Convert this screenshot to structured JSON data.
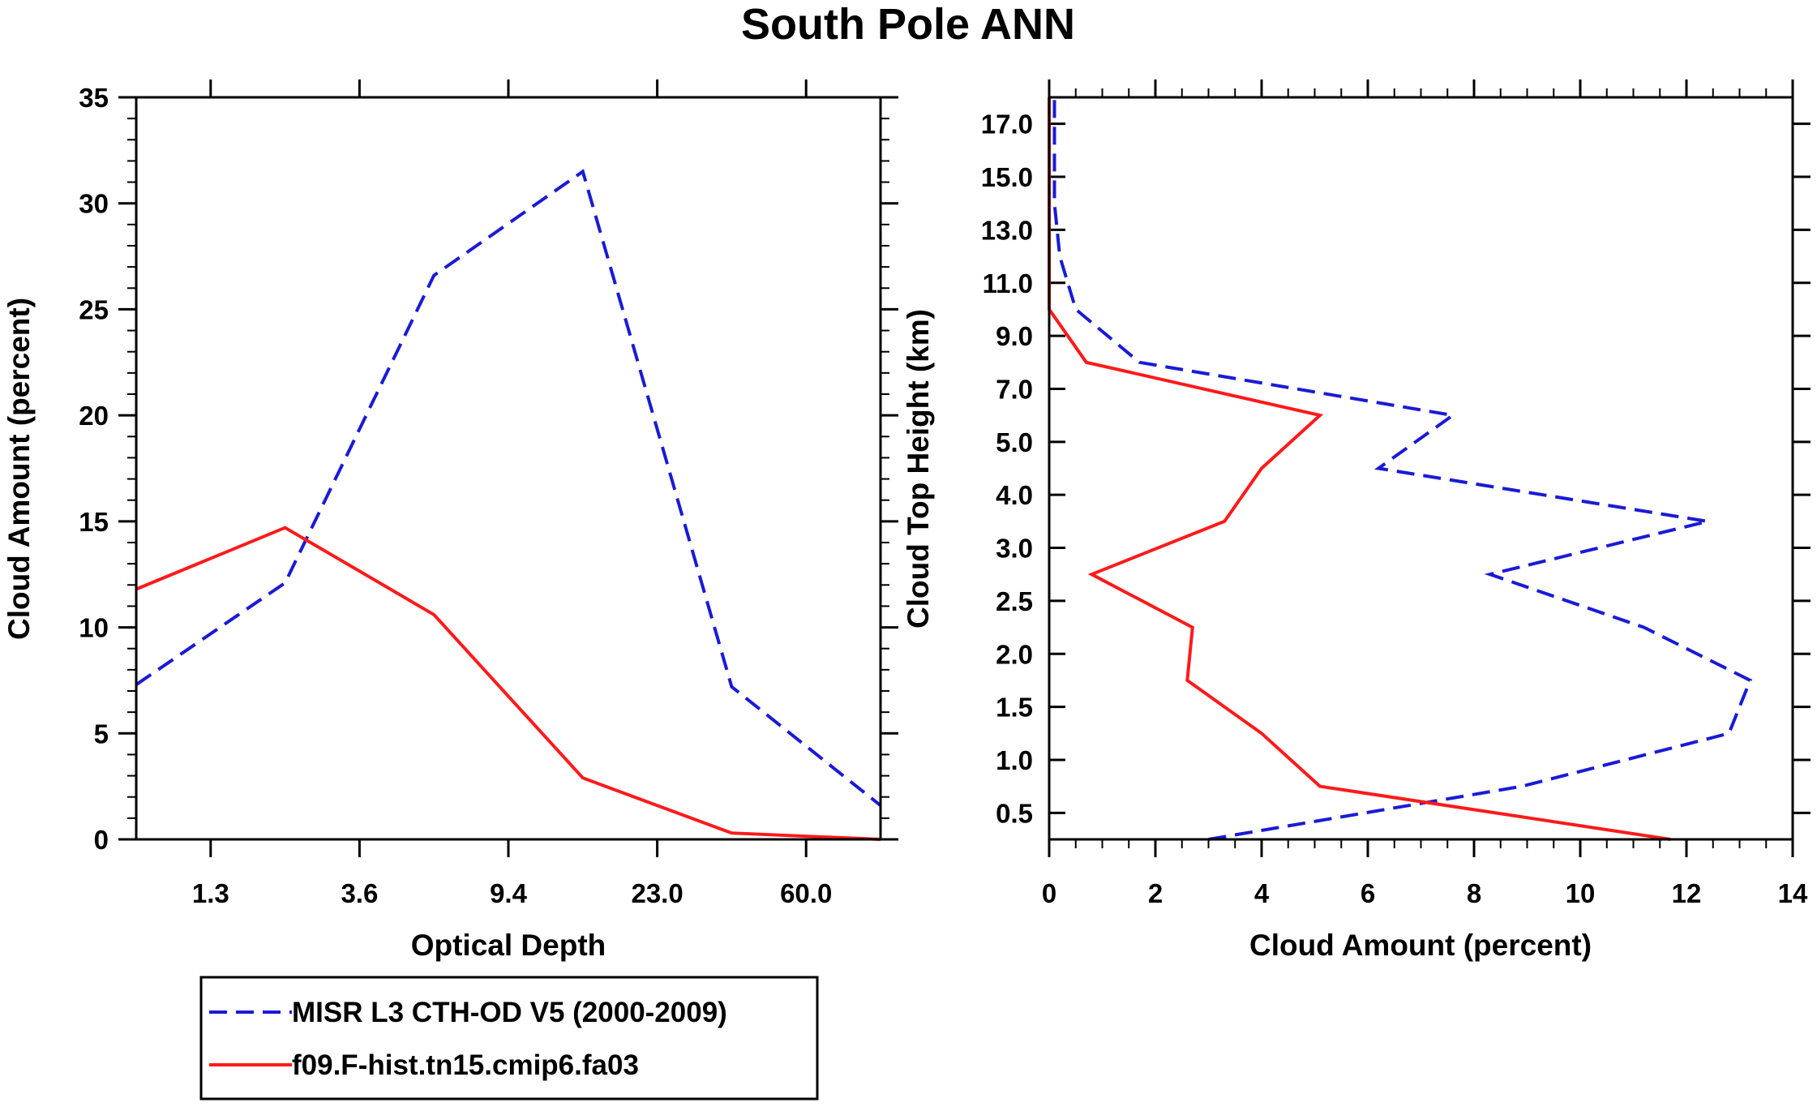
{
  "title": "South Pole ANN",
  "colors": {
    "obs": "#1a1ad6",
    "model": "#ff1a1a",
    "axis": "#000000"
  },
  "chart_data": [
    {
      "type": "line",
      "name": "optical-depth-histogram",
      "xlabel": "Optical Depth",
      "ylabel": "Cloud Amount (percent)",
      "xtick_labels": [
        "1.3",
        "3.6",
        "9.4",
        "23.0",
        "60.0"
      ],
      "ytick_labels": [
        "0",
        "5",
        "10",
        "15",
        "20",
        "25",
        "30",
        "35"
      ],
      "ylim": [
        0,
        35
      ],
      "x_bin_index_range": [
        0,
        5
      ],
      "series": [
        {
          "name": "MISR L3 CTH-OD V5 (2000-2009)",
          "style": "dashed",
          "color": "#1a1ad6",
          "x": [
            0,
            1,
            2,
            3,
            4,
            5
          ],
          "values": [
            7.3,
            12.1,
            26.6,
            31.5,
            7.2,
            1.6
          ]
        },
        {
          "name": "f09.F-hist.tn15.cmip6.fa03",
          "style": "solid",
          "color": "#ff1a1a",
          "x": [
            0,
            1,
            2,
            3,
            4,
            5
          ],
          "values": [
            11.8,
            14.7,
            10.6,
            2.9,
            0.3,
            0.0
          ]
        }
      ]
    },
    {
      "type": "line",
      "name": "cloud-top-height-profile",
      "xlabel": "Cloud Amount (percent)",
      "ylabel": "Cloud Top Height (km)",
      "xtick_labels": [
        "0",
        "2",
        "4",
        "6",
        "8",
        "10",
        "12",
        "14"
      ],
      "xlim": [
        0,
        14
      ],
      "ytick_labels": [
        "0.5",
        "1.0",
        "1.5",
        "2.0",
        "2.5",
        "3.0",
        "4.0",
        "5.0",
        "7.0",
        "9.0",
        "11.0",
        "13.0",
        "15.0",
        "17.0"
      ],
      "y_level_index_range": [
        0,
        14
      ],
      "series": [
        {
          "name": "MISR L3 CTH-OD V5 (2000-2009)",
          "style": "dashed",
          "color": "#1a1ad6",
          "x": [
            3.0,
            8.9,
            12.8,
            13.2,
            11.2,
            8.3,
            12.4,
            6.2,
            7.6,
            1.7,
            0.5,
            0.2,
            0.1,
            0.1,
            0.1
          ],
          "y": [
            0,
            1,
            2,
            3,
            4,
            5,
            6,
            7,
            8,
            9,
            10,
            11,
            12,
            13,
            14
          ]
        },
        {
          "name": "f09.F-hist.tn15.cmip6.fa03",
          "style": "solid",
          "color": "#ff1a1a",
          "x": [
            11.7,
            5.1,
            4.0,
            2.6,
            2.7,
            0.8,
            3.3,
            4.0,
            5.1,
            0.7,
            0.0,
            0.0,
            0.0,
            0.0,
            0.0
          ],
          "y": [
            0,
            1,
            2,
            3,
            4,
            5,
            6,
            7,
            8,
            9,
            10,
            11,
            12,
            13,
            14
          ]
        }
      ]
    }
  ],
  "legend": {
    "items": [
      {
        "label": "MISR L3 CTH-OD V5 (2000-2009)",
        "style": "dashed",
        "color": "#1a1ad6"
      },
      {
        "label": "f09.F-hist.tn15.cmip6.fa03",
        "style": "solid",
        "color": "#ff1a1a"
      }
    ]
  }
}
